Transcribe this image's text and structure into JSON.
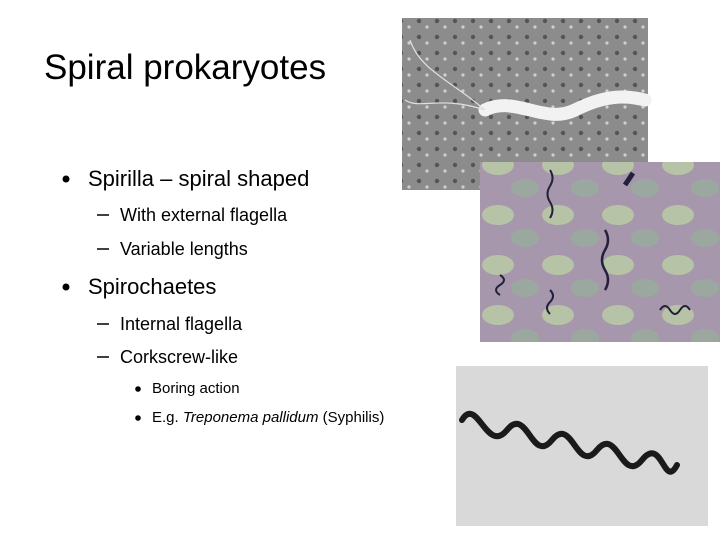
{
  "header": {
    "title": "Spiral prokaryotes"
  },
  "bullets": [
    {
      "text": "Spirilla – spiral shaped",
      "items": [
        {
          "text": "With external flagella"
        },
        {
          "text": "Variable lengths"
        }
      ]
    },
    {
      "text": "Spirochaetes",
      "items": [
        {
          "text": "Internal flagella"
        },
        {
          "text": "Corkscrew-like",
          "items": [
            {
              "segments": [
                "Boring action"
              ]
            },
            {
              "segments": [
                "E.g. ",
                "Treponema pallidum",
                " (Syphilis)"
              ]
            }
          ]
        }
      ]
    }
  ]
}
